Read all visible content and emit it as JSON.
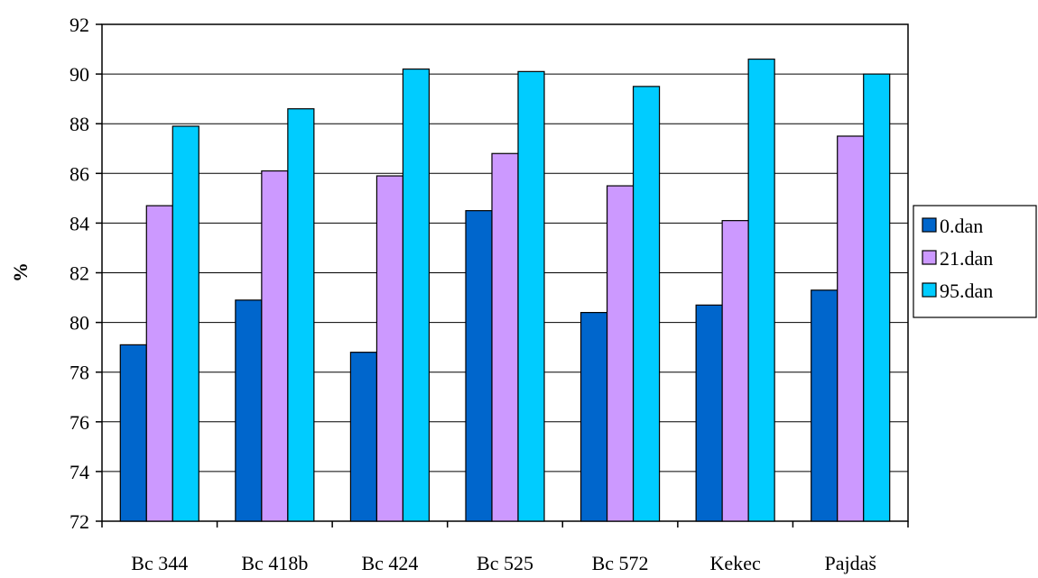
{
  "chart_data": {
    "type": "bar",
    "title": "",
    "xlabel": "",
    "ylabel": "%",
    "ylim": [
      72,
      92
    ],
    "ytick_step": 2,
    "yticks": [
      "72",
      "74",
      "76",
      "78",
      "80",
      "82",
      "84",
      "86",
      "88",
      "90",
      "92"
    ],
    "grid": "horizontal",
    "legend_position": "right",
    "categories": [
      "Bc 344",
      "Bc 418b",
      "Bc 424",
      "Bc 525",
      "Bc 572",
      "Kekec",
      "Pajdaš"
    ],
    "series": [
      {
        "name": "0.dan",
        "color": "#0066cc",
        "values": [
          79.1,
          80.9,
          78.8,
          84.5,
          80.4,
          80.7,
          81.3
        ]
      },
      {
        "name": "21.dan",
        "color": "#cc99ff",
        "values": [
          84.7,
          86.1,
          85.9,
          86.8,
          85.5,
          84.1,
          87.5
        ]
      },
      {
        "name": "95.dan",
        "color": "#00ccff",
        "values": [
          87.9,
          88.6,
          90.2,
          90.1,
          89.5,
          90.6,
          90.0
        ]
      }
    ]
  }
}
